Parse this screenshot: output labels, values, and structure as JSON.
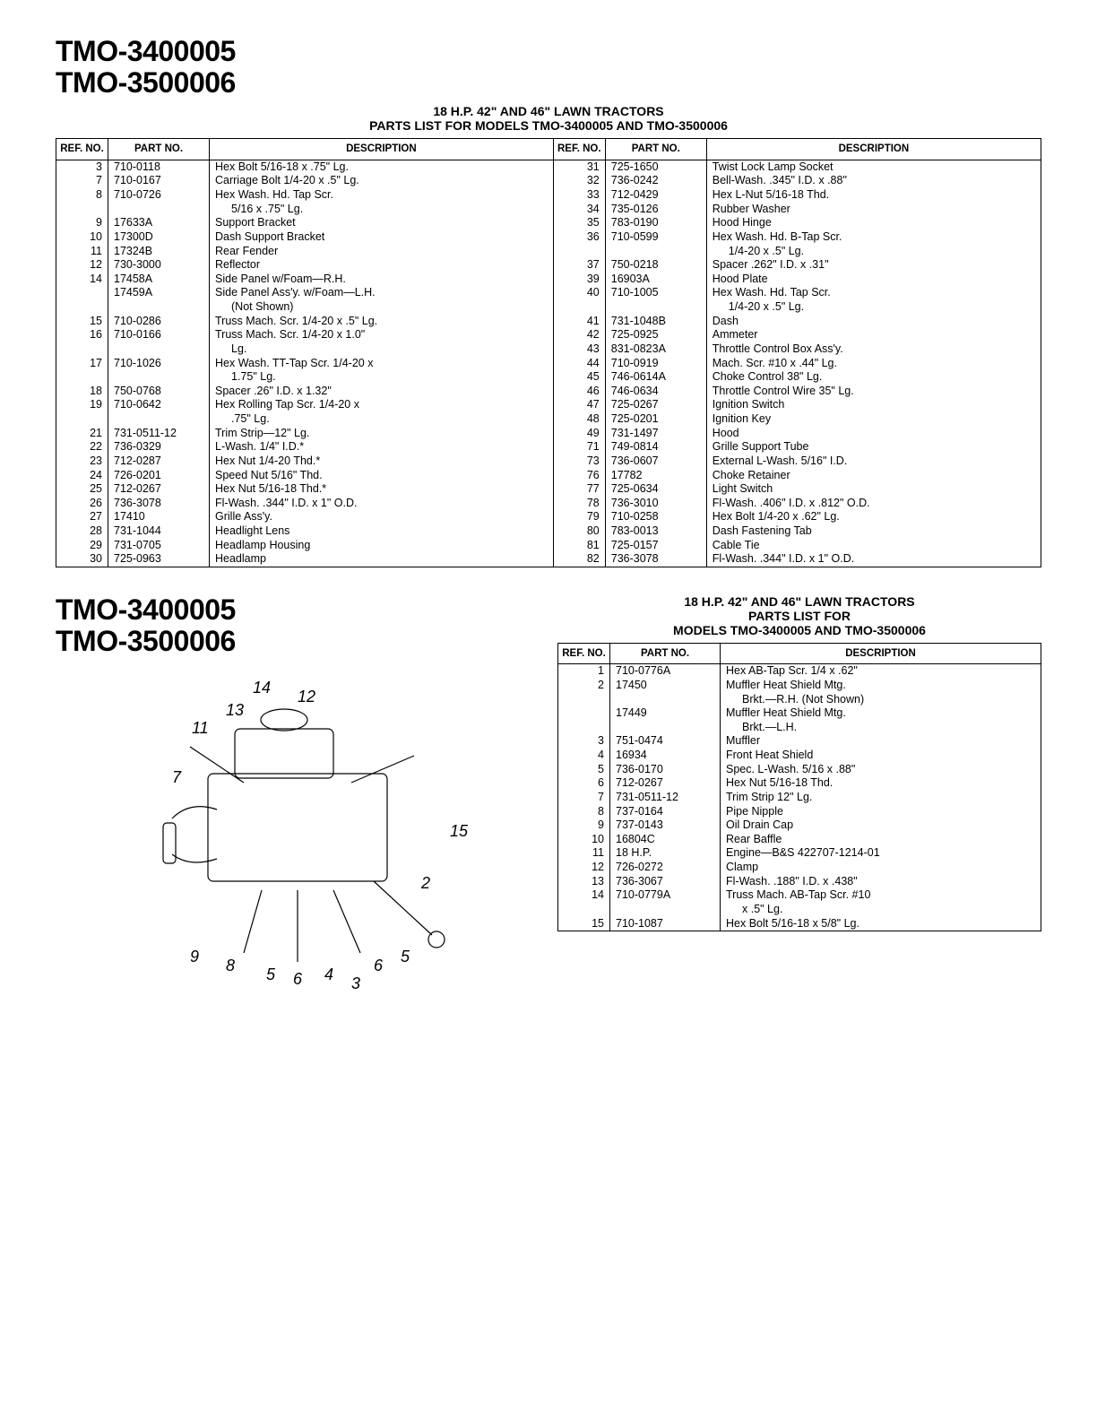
{
  "model1": "TMO-3400005",
  "model2": "TMO-3500006",
  "subtitle1": "18 H.P. 42\" AND 46\" LAWN TRACTORS",
  "subtitle2": "PARTS LIST FOR MODELS TMO-3400005 AND TMO-3500006",
  "headers": {
    "ref": "REF. NO.",
    "part": "PART NO.",
    "desc": "DESCRIPTION"
  },
  "table1_left": [
    {
      "ref": "3",
      "part": "710-0118",
      "desc": "Hex Bolt 5/16-18 x .75\" Lg."
    },
    {
      "ref": "7",
      "part": "710-0167",
      "desc": "Carriage Bolt 1/4-20 x .5\" Lg."
    },
    {
      "ref": "8",
      "part": "710-0726",
      "desc": "Hex Wash. Hd. Tap Scr."
    },
    {
      "ref": "",
      "part": "",
      "desc": "<span class='indent'>5/16 x .75\" Lg.</span>"
    },
    {
      "ref": "9",
      "part": "17633A",
      "desc": "Support Bracket"
    },
    {
      "ref": "10",
      "part": "17300D",
      "desc": "Dash Support Bracket"
    },
    {
      "ref": "11",
      "part": "17324B",
      "desc": "Rear Fender"
    },
    {
      "ref": "12",
      "part": "730-3000",
      "desc": "Reflector"
    },
    {
      "ref": "14",
      "part": "17458A",
      "desc": "Side Panel w/Foam—R.H."
    },
    {
      "ref": "",
      "part": "17459A",
      "desc": "Side Panel Ass'y. w/Foam—L.H."
    },
    {
      "ref": "",
      "part": "",
      "desc": "<span class='indent'>(Not Shown)</span>"
    },
    {
      "ref": "15",
      "part": "710-0286",
      "desc": "Truss Mach. Scr. 1/4-20 x .5\" Lg."
    },
    {
      "ref": "16",
      "part": "710-0166",
      "desc": "Truss Mach. Scr. 1/4-20 x 1.0\""
    },
    {
      "ref": "",
      "part": "",
      "desc": "<span class='indent'>Lg.</span>"
    },
    {
      "ref": "17",
      "part": "710-1026",
      "desc": "Hex Wash. TT-Tap Scr. 1/4-20 x"
    },
    {
      "ref": "",
      "part": "",
      "desc": "<span class='indent'>1.75\" Lg.</span>"
    },
    {
      "ref": "18",
      "part": "750-0768",
      "desc": "Spacer .26\" I.D. x 1.32\""
    },
    {
      "ref": "19",
      "part": "710-0642",
      "desc": "Hex Rolling Tap Scr. 1/4-20 x"
    },
    {
      "ref": "",
      "part": "",
      "desc": "<span class='indent'>.75\" Lg.</span>"
    },
    {
      "ref": "21",
      "part": "731-0511-12",
      "desc": "Trim Strip—12\" Lg."
    },
    {
      "ref": "22",
      "part": "736-0329",
      "desc": "L-Wash. 1/4\" I.D.*"
    },
    {
      "ref": "23",
      "part": "712-0287",
      "desc": "Hex Nut 1/4-20 Thd.*"
    },
    {
      "ref": "24",
      "part": "726-0201",
      "desc": "Speed Nut 5/16\" Thd."
    },
    {
      "ref": "25",
      "part": "712-0267",
      "desc": "Hex Nut 5/16-18 Thd.*"
    },
    {
      "ref": "26",
      "part": "736-3078",
      "desc": "Fl-Wash. .344\" I.D. x 1\" O.D."
    },
    {
      "ref": "27",
      "part": "17410",
      "desc": "Grille Ass'y."
    },
    {
      "ref": "28",
      "part": "731-1044",
      "desc": "Headlight Lens"
    },
    {
      "ref": "29",
      "part": "731-0705",
      "desc": "Headlamp Housing"
    },
    {
      "ref": "30",
      "part": "725-0963",
      "desc": "Headlamp"
    }
  ],
  "table1_right": [
    {
      "ref": "31",
      "part": "725-1650",
      "desc": "Twist Lock Lamp Socket"
    },
    {
      "ref": "32",
      "part": "736-0242",
      "desc": "Bell-Wash. .345\" I.D. x .88\""
    },
    {
      "ref": "33",
      "part": "712-0429",
      "desc": "Hex L-Nut 5/16-18 Thd."
    },
    {
      "ref": "34",
      "part": "735-0126",
      "desc": "Rubber Washer"
    },
    {
      "ref": "35",
      "part": "783-0190",
      "desc": "Hood Hinge"
    },
    {
      "ref": "36",
      "part": "710-0599",
      "desc": "Hex Wash. Hd. B-Tap Scr."
    },
    {
      "ref": "",
      "part": "",
      "desc": "<span class='indent'>1/4-20 x .5\" Lg.</span>"
    },
    {
      "ref": "37",
      "part": "750-0218",
      "desc": "Spacer .262\" I.D. x .31\""
    },
    {
      "ref": "39",
      "part": "16903A",
      "desc": "Hood Plate"
    },
    {
      "ref": "40",
      "part": "710-1005",
      "desc": "Hex Wash. Hd. Tap Scr."
    },
    {
      "ref": "",
      "part": "",
      "desc": "<span class='indent'>1/4-20 x .5\" Lg.</span>"
    },
    {
      "ref": "41",
      "part": "731-1048B",
      "desc": "Dash"
    },
    {
      "ref": "42",
      "part": "725-0925",
      "desc": "Ammeter"
    },
    {
      "ref": "43",
      "part": "831-0823A",
      "desc": "Throttle Control Box Ass'y."
    },
    {
      "ref": "44",
      "part": "710-0919",
      "desc": "Mach. Scr. #10 x .44\" Lg."
    },
    {
      "ref": "45",
      "part": "746-0614A",
      "desc": "Choke Control 38\" Lg."
    },
    {
      "ref": "46",
      "part": "746-0634",
      "desc": "Throttle Control Wire 35\" Lg."
    },
    {
      "ref": "47",
      "part": "725-0267",
      "desc": "Ignition Switch"
    },
    {
      "ref": "48",
      "part": "725-0201",
      "desc": "Ignition Key"
    },
    {
      "ref": "49",
      "part": "731-1497",
      "desc": "Hood"
    },
    {
      "ref": "71",
      "part": "749-0814",
      "desc": "Grille Support Tube"
    },
    {
      "ref": "73",
      "part": "736-0607",
      "desc": "External L-Wash. 5/16\" I.D."
    },
    {
      "ref": "76",
      "part": "17782",
      "desc": "Choke Retainer"
    },
    {
      "ref": "77",
      "part": "725-0634",
      "desc": "Light Switch"
    },
    {
      "ref": "78",
      "part": "736-3010",
      "desc": "Fl-Wash. .406\" I.D. x .812\" O.D."
    },
    {
      "ref": "79",
      "part": "710-0258",
      "desc": "Hex Bolt 1/4-20 x .62\" Lg."
    },
    {
      "ref": "80",
      "part": "783-0013",
      "desc": "Dash Fastening Tab"
    },
    {
      "ref": "81",
      "part": "725-0157",
      "desc": "Cable Tie"
    },
    {
      "ref": "82",
      "part": "736-3078",
      "desc": "Fl-Wash. .344\" I.D. x 1\" O.D."
    }
  ],
  "sec2_sub1": "18 H.P. 42\" AND 46\" LAWN TRACTORS",
  "sec2_sub2": "PARTS LIST FOR",
  "sec2_sub3": "MODELS TMO-3400005 AND TMO-3500006",
  "table2": [
    {
      "ref": "1",
      "part": "710-0776A",
      "desc": "Hex AB-Tap Scr. 1/4 x .62\""
    },
    {
      "ref": "2",
      "part": "17450",
      "desc": "Muffler Heat Shield Mtg."
    },
    {
      "ref": "",
      "part": "",
      "desc": "<span class='indent'>Brkt.—R.H. (Not Shown)</span>"
    },
    {
      "ref": "",
      "part": "17449",
      "desc": "Muffler Heat Shield Mtg."
    },
    {
      "ref": "",
      "part": "",
      "desc": "<span class='indent'>Brkt.—L.H.</span>"
    },
    {
      "ref": "3",
      "part": "751-0474",
      "desc": "Muffler"
    },
    {
      "ref": "4",
      "part": "16934",
      "desc": "Front Heat Shield"
    },
    {
      "ref": "5",
      "part": "736-0170",
      "desc": "Spec. L-Wash. 5/16 x .88\""
    },
    {
      "ref": "6",
      "part": "712-0267",
      "desc": "Hex Nut 5/16-18 Thd."
    },
    {
      "ref": "7",
      "part": "731-0511-12",
      "desc": "Trim Strip 12\" Lg."
    },
    {
      "ref": "8",
      "part": "737-0164",
      "desc": "Pipe Nipple"
    },
    {
      "ref": "9",
      "part": "737-0143",
      "desc": "Oil Drain Cap"
    },
    {
      "ref": "10",
      "part": "16804C",
      "desc": "Rear Baffle"
    },
    {
      "ref": "11",
      "part": "18 H.P.",
      "desc": "Engine—B&S 422707-1214-01"
    },
    {
      "ref": "12",
      "part": "726-0272",
      "desc": "Clamp"
    },
    {
      "ref": "13",
      "part": "736-3067",
      "desc": "Fl-Wash. .188\" I.D. x .438\""
    },
    {
      "ref": "14",
      "part": "710-0779A",
      "desc": "Truss Mach. AB-Tap Scr. #10"
    },
    {
      "ref": "",
      "part": "",
      "desc": "<span class='indent'>x .5\" Lg.</span>"
    },
    {
      "ref": "15",
      "part": "710-1087",
      "desc": "Hex Bolt 5/16-18 x 5/8\" Lg."
    }
  ],
  "diagram_label": "[Engine assembly exploded diagram — callouts 1–15]"
}
